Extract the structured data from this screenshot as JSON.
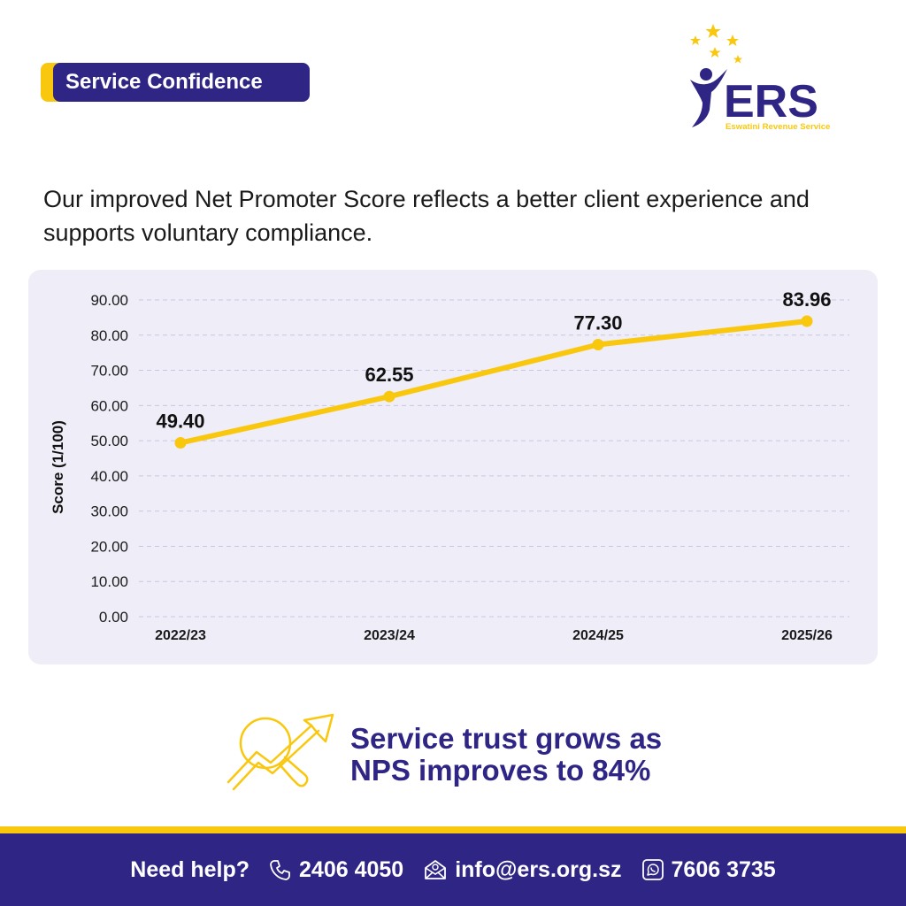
{
  "header": {
    "badge_label": "Service Confidence",
    "logo_text": "ERS",
    "logo_subtitle": "Eswatini Revenue Service"
  },
  "intro_text": "Our improved Net Promoter Score reflects a better client experience and supports voluntary compliance.",
  "chart_data": {
    "type": "line",
    "title": "",
    "xlabel": "",
    "ylabel": "Score (1/100)",
    "categories": [
      "2022/23",
      "2023/24",
      "2024/25",
      "2025/26"
    ],
    "values": [
      49.4,
      62.55,
      77.3,
      83.96
    ],
    "value_labels": [
      "49.40",
      "62.55",
      "77.30",
      "83.96"
    ],
    "ylim": [
      0,
      90
    ],
    "yticks": [
      "0.00",
      "10.00",
      "20.00",
      "30.00",
      "40.00",
      "50.00",
      "60.00",
      "70.00",
      "80.00",
      "90.00"
    ],
    "grid": "horizontal dashed",
    "line_color": "#f9c80e",
    "legend": "none"
  },
  "callout": {
    "icon": "growth-chart-magnifier-icon",
    "text": "Service trust grows as NPS improves to 84%"
  },
  "footer": {
    "help_label": "Need help?",
    "phone": "2406 4050",
    "email": "info@ers.org.sz",
    "whatsapp": "7606 3735"
  },
  "colors": {
    "brand_navy": "#2e2585",
    "brand_yellow": "#f9c80e",
    "chart_background": "#eeedf8"
  }
}
